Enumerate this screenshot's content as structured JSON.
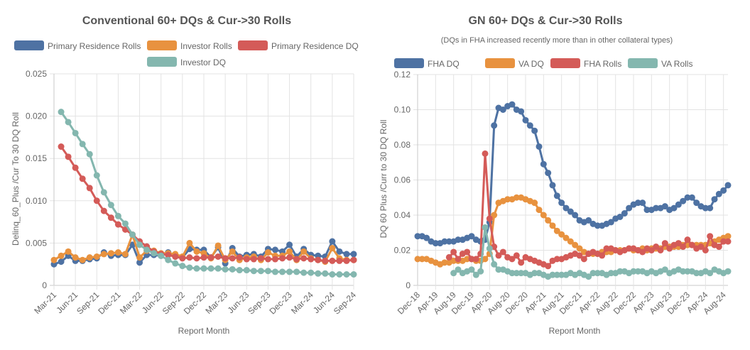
{
  "chart_data": [
    {
      "type": "line",
      "title": "Conventional 60+ DQs & Cur->30 Rolls",
      "subtitle": "",
      "xlabel": "Report Month",
      "ylabel": "Delinq_60_Plus /Cur To 30 DQ Roll",
      "ylim": [
        0,
        0.025
      ],
      "y_ticks": [
        "0",
        "0.005",
        "0.010",
        "0.015",
        "0.020",
        "0.025"
      ],
      "grid": true,
      "legend_position": "top",
      "x": [
        "Mar-21",
        "Apr-21",
        "May-21",
        "Jun-21",
        "Jul-21",
        "Aug-21",
        "Sep-21",
        "Oct-21",
        "Nov-21",
        "Dec-21",
        "Jan-22",
        "Feb-22",
        "Mar-22",
        "Apr-22",
        "May-22",
        "Jun-22",
        "Jul-22",
        "Aug-22",
        "Sep-22",
        "Oct-22",
        "Nov-22",
        "Dec-22",
        "Jan-23",
        "Feb-23",
        "Mar-23",
        "Apr-23",
        "May-23",
        "Jun-23",
        "Jul-23",
        "Aug-23",
        "Sep-23",
        "Oct-23",
        "Nov-23",
        "Dec-23",
        "Jan-24",
        "Feb-24",
        "Mar-24",
        "Apr-24",
        "May-24",
        "Jun-24",
        "Jul-24",
        "Aug-24",
        "Sep-24"
      ],
      "x_ticks": [
        "Mar-21",
        "Jun-21",
        "Sep-21",
        "Dec-21",
        "Mar-22",
        "Jun-22",
        "Sep-22",
        "Dec-22",
        "Mar-23",
        "Jun-23",
        "Sep-23",
        "Dec-23",
        "Mar-24",
        "Jun-24",
        "Sep-24"
      ],
      "series": [
        {
          "name": "Primary Residence Rolls",
          "color": "#4e72a3",
          "values": [
            0.0025,
            0.0028,
            0.0035,
            0.0029,
            0.0029,
            0.0031,
            0.0032,
            0.0039,
            0.0035,
            0.0036,
            0.0036,
            0.0048,
            0.0027,
            0.0036,
            0.0036,
            0.0035,
            0.0039,
            0.0034,
            0.0033,
            0.0043,
            0.0042,
            0.0042,
            0.0033,
            0.0045,
            0.0026,
            0.0044,
            0.0034,
            0.0036,
            0.0037,
            0.0034,
            0.0043,
            0.0042,
            0.004,
            0.0048,
            0.0034,
            0.0043,
            0.0036,
            0.0035,
            0.0034,
            0.0052,
            0.004,
            0.0037,
            0.0037
          ]
        },
        {
          "name": "Investor Rolls",
          "color": "#e8923f",
          "values": [
            0.003,
            0.0035,
            0.004,
            0.0033,
            0.003,
            0.0033,
            0.0034,
            0.0037,
            0.0038,
            0.0039,
            0.0037,
            0.006,
            0.0033,
            0.0041,
            0.0041,
            0.0038,
            0.0038,
            0.0037,
            0.0034,
            0.005,
            0.004,
            0.0038,
            0.0032,
            0.0047,
            0.003,
            0.004,
            0.003,
            0.0033,
            0.0034,
            0.003,
            0.0039,
            0.0035,
            0.0035,
            0.004,
            0.003,
            0.004,
            0.0032,
            0.003,
            0.0028,
            0.0044,
            0.0032,
            0.003,
            0.003
          ]
        },
        {
          "name": "Primary Residence DQ",
          "color": "#d45b58",
          "values": [
            null,
            0.0164,
            0.0152,
            0.0139,
            0.0126,
            0.0115,
            0.01,
            0.0088,
            0.008,
            0.0072,
            0.0066,
            0.006,
            0.0052,
            0.0046,
            0.004,
            0.0037,
            0.0036,
            0.0034,
            0.0032,
            0.0033,
            0.0032,
            0.0033,
            0.0033,
            0.0034,
            0.0032,
            0.0032,
            0.0033,
            0.0031,
            0.0031,
            0.0032,
            0.0031,
            0.0031,
            0.0032,
            0.0033,
            0.0031,
            0.0032,
            0.0031,
            0.003,
            0.0029,
            0.0029,
            0.0029,
            0.0029,
            0.003
          ]
        },
        {
          "name": "Investor DQ",
          "color": "#84b7af",
          "values": [
            null,
            0.0205,
            0.0193,
            0.018,
            0.0167,
            0.0155,
            0.013,
            0.011,
            0.0095,
            0.0082,
            0.0073,
            0.006,
            0.0048,
            0.0042,
            0.0038,
            0.0035,
            0.003,
            0.0026,
            0.0023,
            0.0021,
            0.002,
            0.002,
            0.002,
            0.002,
            0.0019,
            0.0019,
            0.0018,
            0.0018,
            0.0017,
            0.0017,
            0.0017,
            0.0016,
            0.0016,
            0.0016,
            0.0016,
            0.0015,
            0.0015,
            0.0014,
            0.0014,
            0.0013,
            0.0013,
            0.0013,
            0.0013
          ]
        }
      ]
    },
    {
      "type": "line",
      "title": "GN 60+ DQs & Cur->30 Rolls",
      "subtitle": "(DQs in FHA increased recently more than in other collateral types)",
      "xlabel": "Report Month",
      "ylabel": "DQ 60 Plus /Curr to 30 DQ Roll",
      "ylim": [
        0,
        0.12
      ],
      "y_ticks": [
        "0",
        "0.02",
        "0.04",
        "0.06",
        "0.08",
        "0.10",
        "0.12"
      ],
      "grid": true,
      "legend_position": "top",
      "x": [
        "Dec-18",
        "Jan-19",
        "Feb-19",
        "Mar-19",
        "Apr-19",
        "May-19",
        "Jun-19",
        "Jul-19",
        "Aug-19",
        "Sep-19",
        "Oct-19",
        "Nov-19",
        "Dec-19",
        "Jan-20",
        "Feb-20",
        "Mar-20",
        "Apr-20",
        "May-20",
        "Jun-20",
        "Jul-20",
        "Aug-20",
        "Sep-20",
        "Oct-20",
        "Nov-20",
        "Dec-20",
        "Jan-21",
        "Feb-21",
        "Mar-21",
        "Apr-21",
        "May-21",
        "Jun-21",
        "Jul-21",
        "Aug-21",
        "Sep-21",
        "Oct-21",
        "Nov-21",
        "Dec-21",
        "Jan-22",
        "Feb-22",
        "Mar-22",
        "Apr-22",
        "May-22",
        "Jun-22",
        "Jul-22",
        "Aug-22",
        "Sep-22",
        "Oct-22",
        "Nov-22",
        "Dec-22",
        "Jan-23",
        "Feb-23",
        "Mar-23",
        "Apr-23",
        "May-23",
        "Jun-23",
        "Jul-23",
        "Aug-23",
        "Sep-23",
        "Oct-23",
        "Nov-23",
        "Dec-23",
        "Jan-24",
        "Feb-24",
        "Mar-24",
        "Apr-24",
        "May-24",
        "Jun-24",
        "Jul-24",
        "Aug-24",
        "Sep-24"
      ],
      "x_ticks": [
        "Dec-18",
        "Apr-19",
        "Aug-19",
        "Dec-19",
        "Apr-20",
        "Aug-20",
        "Dec-20",
        "Apr-21",
        "Aug-21",
        "Dec-21",
        "Apr-22",
        "Aug-22",
        "Dec-22",
        "Apr-23",
        "Aug-23",
        "Dec-23",
        "Apr-24",
        "Aug-24"
      ],
      "series": [
        {
          "name": "FHA DQ",
          "color": "#4e72a3",
          "values": [
            0.028,
            0.028,
            0.027,
            0.025,
            0.024,
            0.024,
            0.025,
            0.025,
            0.025,
            0.026,
            0.026,
            0.027,
            0.028,
            0.026,
            0.025,
            0.026,
            0.036,
            0.091,
            0.101,
            0.1,
            0.102,
            0.103,
            0.1,
            0.099,
            0.094,
            0.091,
            0.088,
            0.079,
            0.069,
            0.064,
            0.057,
            0.051,
            0.047,
            0.044,
            0.042,
            0.04,
            0.037,
            0.036,
            0.037,
            0.035,
            0.034,
            0.034,
            0.035,
            0.036,
            0.038,
            0.039,
            0.041,
            0.044,
            0.046,
            0.047,
            0.047,
            0.043,
            0.043,
            0.044,
            0.044,
            0.045,
            0.043,
            0.044,
            0.046,
            0.048,
            0.05,
            0.05,
            0.047,
            0.045,
            0.044,
            0.044,
            0.049,
            0.052,
            0.054,
            0.057
          ]
        },
        {
          "name": "VA DQ",
          "color": "#e8923f",
          "values": [
            0.015,
            0.015,
            0.015,
            0.014,
            0.013,
            0.012,
            0.013,
            0.013,
            0.014,
            0.014,
            0.014,
            0.015,
            0.015,
            0.014,
            0.014,
            0.015,
            0.018,
            0.04,
            0.047,
            0.048,
            0.049,
            0.049,
            0.05,
            0.05,
            0.049,
            0.048,
            0.047,
            0.043,
            0.04,
            0.037,
            0.034,
            0.031,
            0.029,
            0.027,
            0.025,
            0.023,
            0.021,
            0.019,
            0.018,
            0.018,
            0.018,
            0.019,
            0.019,
            0.019,
            0.02,
            0.02,
            0.02,
            0.021,
            0.02,
            0.02,
            0.021,
            0.02,
            0.021,
            0.021,
            0.021,
            0.022,
            0.022,
            0.022,
            0.022,
            0.023,
            0.023,
            0.023,
            0.023,
            0.023,
            0.023,
            0.024,
            0.025,
            0.026,
            0.027,
            0.028
          ]
        },
        {
          "name": "FHA Rolls",
          "color": "#d45b58",
          "values": [
            null,
            null,
            null,
            null,
            null,
            null,
            null,
            0.016,
            0.019,
            0.015,
            0.018,
            0.019,
            0.015,
            0.015,
            0.018,
            0.075,
            0.038,
            0.022,
            0.017,
            0.019,
            0.016,
            0.015,
            0.017,
            0.013,
            0.016,
            0.015,
            0.014,
            0.013,
            0.012,
            0.011,
            0.014,
            0.015,
            0.015,
            0.016,
            0.017,
            0.018,
            0.017,
            0.015,
            0.018,
            0.019,
            0.018,
            0.017,
            0.021,
            0.021,
            0.02,
            0.019,
            0.02,
            0.021,
            0.021,
            0.02,
            0.019,
            0.021,
            0.02,
            0.022,
            0.02,
            0.024,
            0.021,
            0.023,
            0.024,
            0.022,
            0.026,
            0.023,
            0.021,
            0.022,
            0.02,
            0.028,
            0.023,
            0.022,
            0.025,
            0.025
          ]
        },
        {
          "name": "VA Rolls",
          "color": "#84b7af",
          "values": [
            null,
            null,
            null,
            null,
            null,
            null,
            null,
            null,
            0.007,
            0.009,
            0.007,
            0.008,
            0.009,
            0.006,
            0.008,
            0.033,
            0.021,
            0.012,
            0.009,
            0.009,
            0.008,
            0.007,
            0.007,
            0.007,
            0.007,
            0.006,
            0.007,
            0.007,
            0.006,
            0.005,
            0.006,
            0.006,
            0.006,
            0.006,
            0.007,
            0.006,
            0.007,
            0.006,
            0.005,
            0.007,
            0.007,
            0.007,
            0.006,
            0.007,
            0.007,
            0.008,
            0.008,
            0.007,
            0.008,
            0.008,
            0.008,
            0.007,
            0.008,
            0.007,
            0.008,
            0.009,
            0.007,
            0.008,
            0.009,
            0.008,
            0.008,
            0.008,
            0.007,
            0.007,
            0.008,
            0.007,
            0.009,
            0.008,
            0.007,
            0.008
          ]
        }
      ]
    }
  ]
}
